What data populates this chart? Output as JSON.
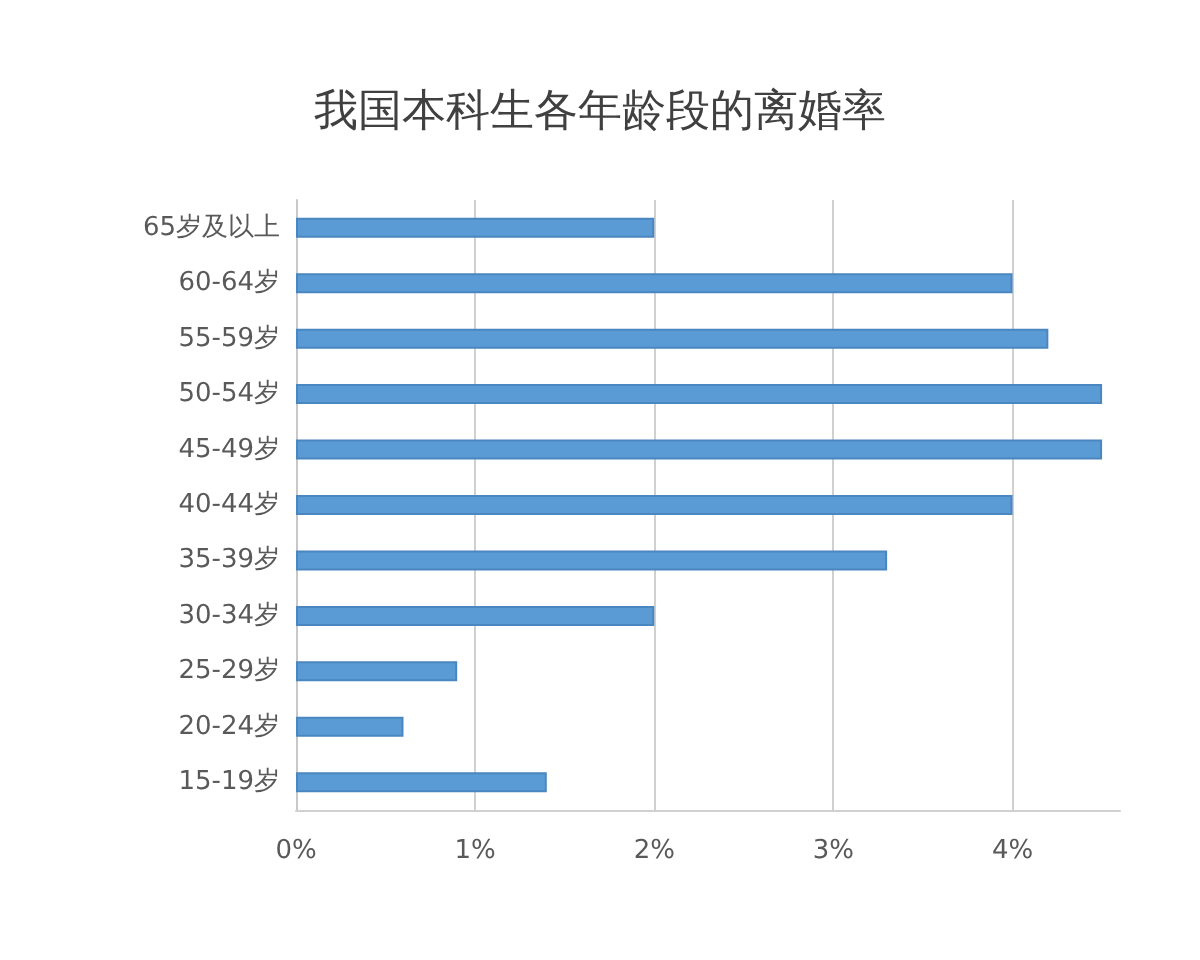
{
  "chart_data": {
    "type": "bar",
    "orientation": "horizontal",
    "title": "我国本科生各年龄段的离婚率",
    "categories": [
      "65岁及以上",
      "60-64岁",
      "55-59岁",
      "50-54岁",
      "45-49岁",
      "40-44岁",
      "35-39岁",
      "30-34岁",
      "25-29岁",
      "20-24岁",
      "15-19岁"
    ],
    "values": [
      2.0,
      4.0,
      4.2,
      4.5,
      4.5,
      4.0,
      3.3,
      2.0,
      0.9,
      0.6,
      1.4
    ],
    "color": "#5b9bd5",
    "xlim": [
      0,
      4.6
    ],
    "xticks": [
      {
        "value": 0,
        "label": "0%"
      },
      {
        "value": 1,
        "label": "1%"
      },
      {
        "value": 2,
        "label": "2%"
      },
      {
        "value": 3,
        "label": "3%"
      },
      {
        "value": 4,
        "label": "4%"
      }
    ],
    "grid": "x"
  }
}
